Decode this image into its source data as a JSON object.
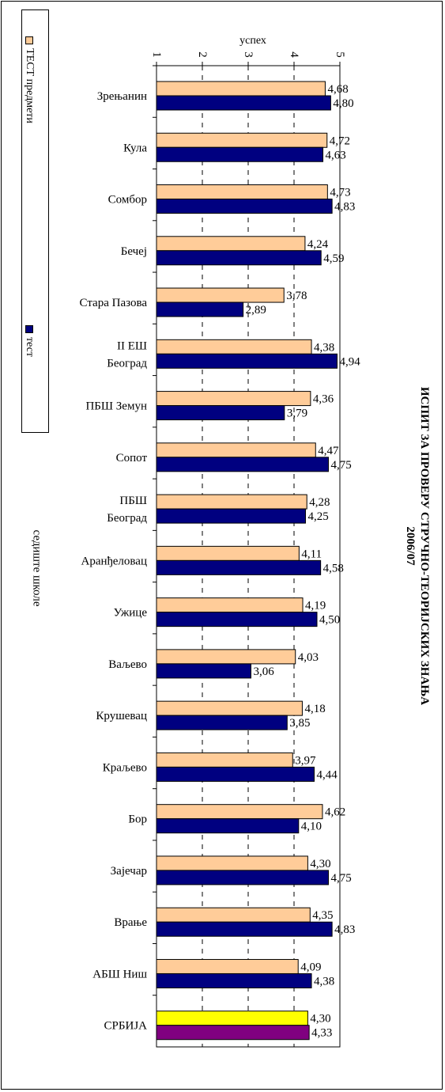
{
  "title_line1": "ИСПИТ ЗА ПРОВЕРУ СТРУЧНО-ТЕОРИЈСКИХ ЗНАЊА",
  "title_line2": "2006/07",
  "chart_data": {
    "type": "bar",
    "orientation": "horizontal",
    "title": "ИСПИТ ЗА ПРОВЕРУ СТРУЧНО-ТЕОРИЈСКИХ ЗНАЊА 2006/07",
    "xlabel": "успех",
    "ylabel": "седиште школе",
    "xlim": [
      1,
      5
    ],
    "ticks": [
      "1",
      "2",
      "3",
      "4",
      "5"
    ],
    "grid": true,
    "legend_placement": "left",
    "categories": [
      "Зрењанин",
      "Кула",
      "Сомбор",
      "Бечеј",
      "Стара Пазова",
      "II ЕШ Београд",
      "ПБШ Земун",
      "Сопот",
      "ПБШ Београд",
      "Аранђеловац",
      "Ужице",
      "Ваљево",
      "Крушевац",
      "Краљево",
      "Бор",
      "Зајечар",
      "Врање",
      "АБШ Ниш",
      "СРБИЈА"
    ],
    "category_lines": [
      [
        "Зрењанин"
      ],
      [
        "Кула"
      ],
      [
        "Сомбор"
      ],
      [
        "Бечеј"
      ],
      [
        "Стара Пазова"
      ],
      [
        "II ЕШ",
        "Београд"
      ],
      [
        "ПБШ Земун"
      ],
      [
        "Сопот"
      ],
      [
        "ПБШ",
        "Београд"
      ],
      [
        "Аранђеловац"
      ],
      [
        "Ужице"
      ],
      [
        "Ваљево"
      ],
      [
        "Крушевац"
      ],
      [
        "Краљево"
      ],
      [
        "Бор"
      ],
      [
        "Зајечар"
      ],
      [
        "Врање"
      ],
      [
        "АБШ Ниш"
      ],
      [
        "СРБИЈА"
      ]
    ],
    "series": [
      {
        "name": "ТЕСТ предмети",
        "color": "#FFCC99",
        "values": [
          4.68,
          4.72,
          4.73,
          4.24,
          3.78,
          4.38,
          4.36,
          4.47,
          4.28,
          4.11,
          4.19,
          4.03,
          4.18,
          3.97,
          4.62,
          4.3,
          4.35,
          4.09,
          4.3
        ],
        "labels": [
          "4,68",
          "4,72",
          "4,73",
          "4,24",
          "3,78",
          "4,38",
          "4,36",
          "4,47",
          "4,28",
          "4,11",
          "4,19",
          "4,03",
          "4,18",
          "3,97",
          "4,62",
          "4,30",
          "4,35",
          "4,09",
          "4,30"
        ]
      },
      {
        "name": "тест",
        "color": "#000080",
        "values": [
          4.8,
          4.63,
          4.83,
          4.59,
          2.89,
          4.94,
          3.79,
          4.75,
          4.25,
          4.58,
          4.5,
          3.06,
          3.85,
          4.44,
          4.1,
          4.75,
          4.83,
          4.38,
          4.33
        ],
        "labels": [
          "4,80",
          "4,63",
          "4,83",
          "4,59",
          "2,89",
          "4,94",
          "3,79",
          "4,75",
          "4,25",
          "4,58",
          "4,50",
          "3,06",
          "3,85",
          "4,44",
          "4,10",
          "4,75",
          "4,83",
          "4,38",
          "4,33"
        ]
      }
    ],
    "highlight_colors": {
      "СРБИЈА": [
        "#FFFF00",
        "#800080"
      ]
    }
  }
}
